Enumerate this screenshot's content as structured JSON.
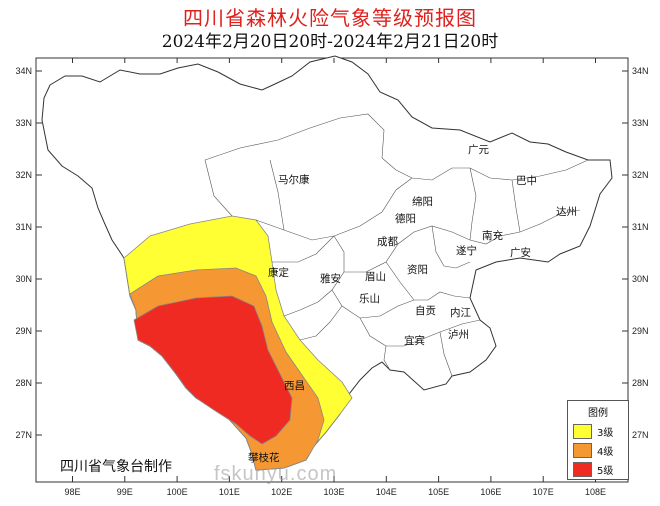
{
  "title": "四川省森林火险气象等级预报图",
  "subtitle": "2024年2月20日20时-2024年2月21日20时",
  "axes": {
    "lon_ticks": [
      "98E",
      "99E",
      "100E",
      "101E",
      "102E",
      "103E",
      "104E",
      "105E",
      "106E",
      "107E",
      "108E"
    ],
    "lat_ticks": [
      "34N",
      "33N",
      "32N",
      "31N",
      "30N",
      "29N",
      "28N",
      "27N"
    ]
  },
  "cities": [
    "马尔康",
    "广元",
    "巴中",
    "绵阳",
    "德阳",
    "达州",
    "南充",
    "成都",
    "遂宁",
    "广安",
    "康定",
    "雅安",
    "眉山",
    "资阳",
    "乐山",
    "自贡",
    "内江",
    "泸州",
    "宜宾",
    "西昌",
    "攀枝花"
  ],
  "legend": {
    "title": "图例",
    "items": [
      {
        "label": "3级",
        "color": "#ffff33"
      },
      {
        "label": "4级",
        "color": "#f59733"
      },
      {
        "label": "5级",
        "color": "#ef2a22"
      }
    ]
  },
  "credit": "四川省气象台制作",
  "watermark": "fskunyu.com"
}
